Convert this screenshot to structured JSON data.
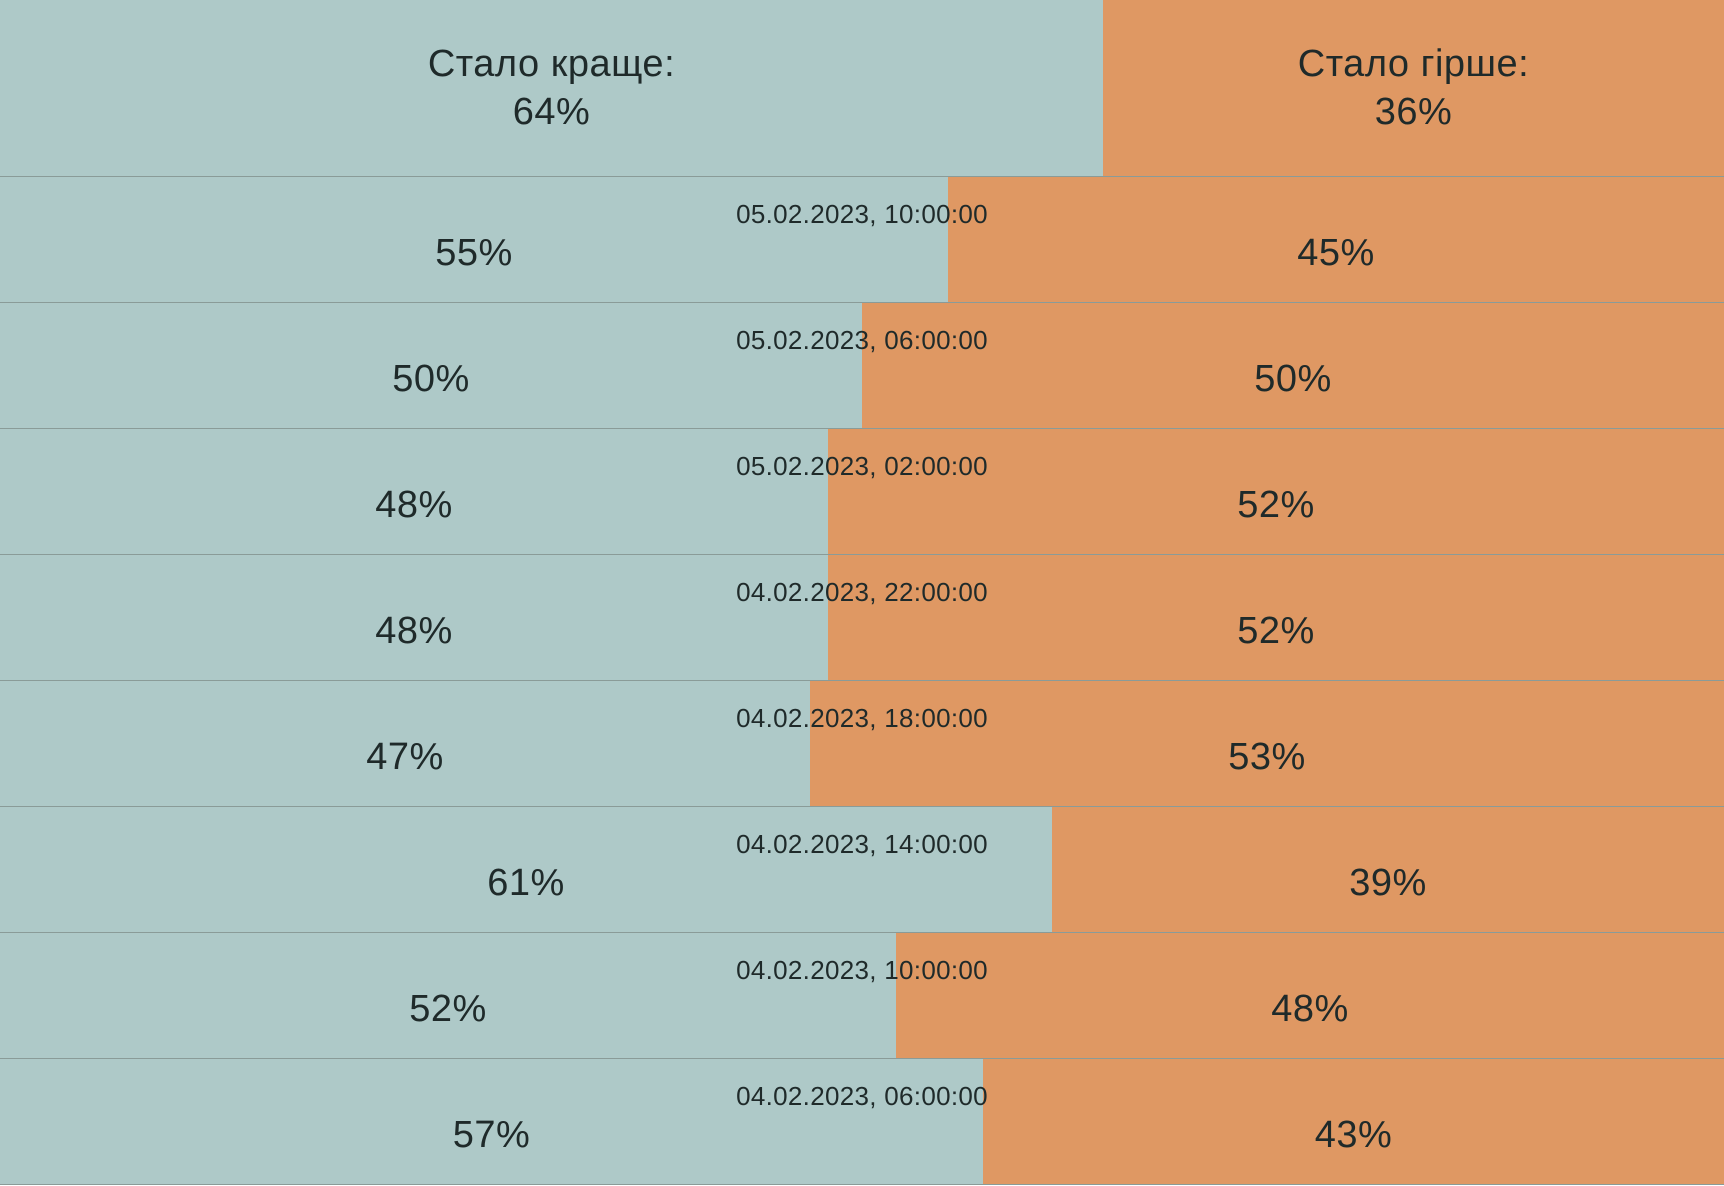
{
  "chart_data": {
    "type": "bar",
    "orientation": "horizontal-stacked-100",
    "colors": {
      "better": "#aec9c8",
      "worse": "#df9863"
    },
    "header": {
      "better_label": "Стало краще:",
      "worse_label": "Стало гірше:",
      "better_value": 64,
      "worse_value": 36,
      "better_text": "64%",
      "worse_text": "36%"
    },
    "rows": [
      {
        "timestamp": "05.02.2023, 10:00:00",
        "better": 55,
        "worse": 45,
        "better_text": "55%",
        "worse_text": "45%"
      },
      {
        "timestamp": "05.02.2023, 06:00:00",
        "better": 50,
        "worse": 50,
        "better_text": "50%",
        "worse_text": "50%"
      },
      {
        "timestamp": "05.02.2023, 02:00:00",
        "better": 48,
        "worse": 52,
        "better_text": "48%",
        "worse_text": "52%"
      },
      {
        "timestamp": "04.02.2023, 22:00:00",
        "better": 48,
        "worse": 52,
        "better_text": "48%",
        "worse_text": "52%"
      },
      {
        "timestamp": "04.02.2023, 18:00:00",
        "better": 47,
        "worse": 53,
        "better_text": "47%",
        "worse_text": "53%"
      },
      {
        "timestamp": "04.02.2023, 14:00:00",
        "better": 61,
        "worse": 39,
        "better_text": "61%",
        "worse_text": "39%"
      },
      {
        "timestamp": "04.02.2023, 10:00:00",
        "better": 52,
        "worse": 48,
        "better_text": "52%",
        "worse_text": "48%"
      },
      {
        "timestamp": "04.02.2023, 06:00:00",
        "better": 57,
        "worse": 43,
        "better_text": "57%",
        "worse_text": "43%"
      }
    ]
  }
}
